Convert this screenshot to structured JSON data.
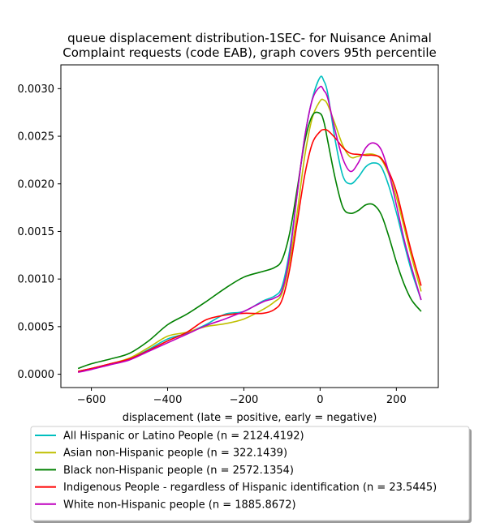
{
  "chart_data": {
    "type": "line",
    "title": "queue displacement distribution-1SEC-  for Nuisance Animal\nComplaint  requests (code EAB), graph covers 95th percentile",
    "xlabel": "displacement (late = positive, early = negative)",
    "ylabel": "",
    "xlim": [
      -680,
      310
    ],
    "ylim": [
      -0.00014,
      0.00325
    ],
    "xticks": [
      -600,
      -400,
      -200,
      0,
      200
    ],
    "xtick_labels": [
      "−600",
      "−400",
      "−200",
      "0",
      "200"
    ],
    "yticks": [
      0.0,
      0.0005,
      0.001,
      0.0015,
      0.002,
      0.0025,
      0.003
    ],
    "ytick_labels": [
      "0.0000",
      "0.0005",
      "0.0010",
      "0.0015",
      "0.0020",
      "0.0025",
      "0.0030"
    ],
    "grid": false,
    "legend_position": "below",
    "series": [
      {
        "name": "All Hispanic or Latino People (n = 2124.4192)",
        "color": "#00bfbf",
        "x": [
          -635,
          -600,
          -550,
          -500,
          -450,
          -400,
          -350,
          -300,
          -250,
          -200,
          -150,
          -120,
          -100,
          -80,
          -60,
          -40,
          -20,
          0,
          10,
          20,
          40,
          60,
          80,
          100,
          120,
          140,
          160,
          180,
          200,
          220,
          240,
          265
        ],
        "y": [
          3e-05,
          6e-05,
          0.00011,
          0.00016,
          0.00026,
          0.00037,
          0.00043,
          0.00052,
          0.00063,
          0.00066,
          0.00077,
          0.00082,
          0.00092,
          0.0013,
          0.0019,
          0.0025,
          0.0029,
          0.00312,
          0.00308,
          0.00295,
          0.00245,
          0.00208,
          0.002,
          0.00207,
          0.00218,
          0.00222,
          0.00218,
          0.00198,
          0.0017,
          0.00138,
          0.00108,
          0.00078
        ]
      },
      {
        "name": "Asian non-Hispanic people (n = 322.1439)",
        "color": "#bfbf00",
        "x": [
          -635,
          -600,
          -550,
          -500,
          -450,
          -400,
          -350,
          -300,
          -250,
          -200,
          -150,
          -120,
          -100,
          -80,
          -60,
          -40,
          -20,
          0,
          10,
          20,
          40,
          60,
          80,
          100,
          120,
          140,
          160,
          180,
          200,
          220,
          240,
          265
        ],
        "y": [
          3e-05,
          6e-05,
          0.00011,
          0.00017,
          0.00028,
          0.0004,
          0.00044,
          0.0005,
          0.00053,
          0.00058,
          0.00068,
          0.00076,
          0.00085,
          0.00118,
          0.0017,
          0.0023,
          0.0027,
          0.00287,
          0.00288,
          0.00283,
          0.00262,
          0.0024,
          0.00228,
          0.00229,
          0.00231,
          0.00231,
          0.00226,
          0.0021,
          0.00186,
          0.00155,
          0.00123,
          0.00087
        ]
      },
      {
        "name": "Black non-Hispanic people (n = 2572.1354)",
        "color": "#008000",
        "x": [
          -635,
          -600,
          -550,
          -500,
          -450,
          -400,
          -350,
          -300,
          -250,
          -200,
          -150,
          -120,
          -100,
          -80,
          -60,
          -40,
          -20,
          0,
          10,
          20,
          40,
          60,
          80,
          100,
          120,
          140,
          160,
          180,
          200,
          220,
          240,
          265
        ],
        "y": [
          6e-05,
          0.00011,
          0.00016,
          0.00022,
          0.00035,
          0.00052,
          0.00063,
          0.00076,
          0.0009,
          0.00102,
          0.00108,
          0.00112,
          0.0012,
          0.00148,
          0.00195,
          0.00245,
          0.00272,
          0.00274,
          0.00265,
          0.00245,
          0.00205,
          0.00175,
          0.00169,
          0.00172,
          0.00178,
          0.00178,
          0.00168,
          0.00145,
          0.00118,
          0.00095,
          0.00078,
          0.00066
        ]
      },
      {
        "name": "Indigenous People - regardless of Hispanic identification (n = 23.5445)",
        "color": "#ff0000",
        "x": [
          -635,
          -600,
          -550,
          -500,
          -450,
          -400,
          -350,
          -300,
          -250,
          -200,
          -150,
          -120,
          -100,
          -80,
          -60,
          -40,
          -20,
          0,
          10,
          20,
          40,
          60,
          80,
          100,
          120,
          140,
          160,
          180,
          200,
          220,
          240,
          265
        ],
        "y": [
          3e-05,
          6e-05,
          0.00011,
          0.00016,
          0.00025,
          0.00035,
          0.00044,
          0.00057,
          0.00062,
          0.00064,
          0.00064,
          0.00068,
          0.00078,
          0.0011,
          0.0016,
          0.0021,
          0.00243,
          0.00255,
          0.00257,
          0.00256,
          0.00248,
          0.00238,
          0.00232,
          0.00231,
          0.0023,
          0.0023,
          0.00227,
          0.00213,
          0.00192,
          0.0016,
          0.00128,
          0.00093
        ]
      },
      {
        "name": "White non-Hispanic people (n = 1885.8672)",
        "color": "#bf00bf",
        "x": [
          -635,
          -600,
          -550,
          -500,
          -450,
          -400,
          -350,
          -300,
          -250,
          -200,
          -150,
          -120,
          -100,
          -80,
          -60,
          -40,
          -20,
          0,
          10,
          20,
          40,
          60,
          80,
          100,
          120,
          140,
          160,
          180,
          200,
          220,
          240,
          265
        ],
        "y": [
          2e-05,
          5e-05,
          0.0001,
          0.00015,
          0.00024,
          0.00033,
          0.00042,
          0.00051,
          0.00058,
          0.00066,
          0.00076,
          0.0008,
          0.00088,
          0.00125,
          0.0019,
          0.0025,
          0.00289,
          0.00302,
          0.00298,
          0.0029,
          0.00255,
          0.00226,
          0.00213,
          0.00222,
          0.00238,
          0.00243,
          0.00236,
          0.00212,
          0.00178,
          0.00142,
          0.00112,
          0.00078
        ]
      }
    ]
  }
}
